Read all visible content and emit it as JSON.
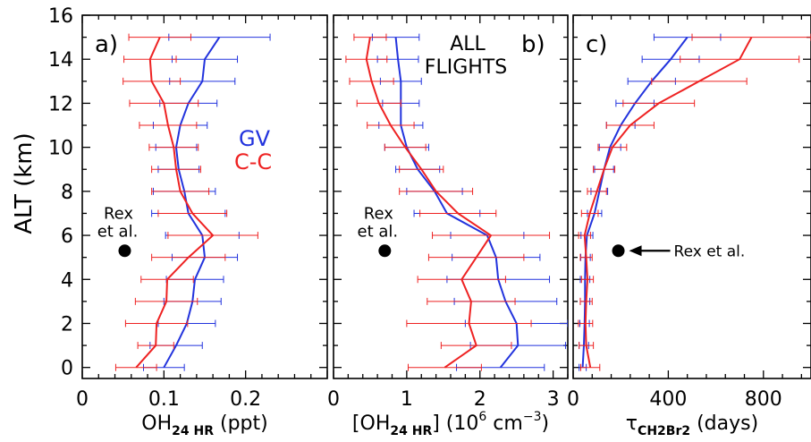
{
  "ylabel": "ALT (km)",
  "yticks": [
    "0",
    "2",
    "4",
    "6",
    "8",
    "10",
    "12",
    "14",
    "16"
  ],
  "colors": {
    "GV": "#2233dd",
    "C-C": "#ee2222",
    "axes": "#000000"
  },
  "chart_data": [
    {
      "type": "line",
      "panel_label": "a)",
      "xlabel": "OH",
      "xlabel_sub": "24 HR",
      "xlabel_unit": " (ppt)",
      "xlim": [
        0,
        0.3
      ],
      "ylim": [
        -0.5,
        16
      ],
      "xticks": [
        0,
        0.1,
        0.2
      ],
      "xtick_labels": [
        "0",
        "0.1",
        "0.2"
      ],
      "legend": {
        "gv": "GV",
        "cc": "C-C"
      },
      "annotation": {
        "line1": "Rex",
        "line2": "et al.",
        "x": 0.052,
        "y": 5.3
      },
      "series": [
        {
          "name": "GV",
          "y": [
            0,
            1,
            2,
            3,
            4,
            5,
            6,
            7,
            8,
            9,
            10,
            11,
            12,
            13,
            14,
            15
          ],
          "x": [
            0.1,
            0.115,
            0.128,
            0.135,
            0.138,
            0.15,
            0.147,
            0.13,
            0.125,
            0.118,
            0.115,
            0.12,
            0.13,
            0.147,
            0.15,
            0.168
          ],
          "err": [
            0.025,
            0.032,
            0.035,
            0.035,
            0.035,
            0.04,
            0.045,
            0.045,
            0.038,
            0.025,
            0.025,
            0.033,
            0.035,
            0.04,
            0.04,
            0.062
          ]
        },
        {
          "name": "C-C",
          "y": [
            0,
            1,
            2,
            3,
            4,
            5,
            6,
            7,
            8,
            9,
            10,
            11,
            12,
            13,
            14,
            15
          ],
          "x": [
            0.066,
            0.09,
            0.091,
            0.103,
            0.104,
            0.13,
            0.16,
            0.135,
            0.12,
            0.115,
            0.112,
            0.105,
            0.1,
            0.085,
            0.083,
            0.095
          ],
          "err": [
            0.025,
            0.022,
            0.038,
            0.038,
            0.032,
            0.045,
            0.055,
            0.042,
            0.035,
            0.03,
            0.03,
            0.035,
            0.042,
            0.035,
            0.032,
            0.038
          ]
        }
      ]
    },
    {
      "type": "line",
      "panel_label": "b)",
      "xlabel": "[OH",
      "xlabel_sub": "24 HR",
      "xlabel_unit": "] (10",
      "xlabel_exp": "6",
      "xlabel_unit2": " cm",
      "xlabel_exp2": "−3",
      "xlabel_close": ")",
      "xlim": [
        0,
        3.2
      ],
      "ylim": [
        -0.5,
        16
      ],
      "xticks": [
        0,
        1,
        2,
        3
      ],
      "xtick_labels": [
        "0",
        "1",
        "2",
        "3"
      ],
      "title_line1": "ALL",
      "title_line2": "FLIGHTS",
      "annotation": {
        "line1": "Rex",
        "line2": "et al.",
        "x": 0.7,
        "y": 5.3
      },
      "series": [
        {
          "name": "GV",
          "y": [
            0,
            1,
            2,
            3,
            4,
            5,
            6,
            7,
            8,
            9,
            10,
            11,
            12,
            13,
            14,
            15
          ],
          "x": [
            2.28,
            2.52,
            2.5,
            2.35,
            2.25,
            2.22,
            2.1,
            1.55,
            1.38,
            1.15,
            1.0,
            0.92,
            0.92,
            0.92,
            0.88,
            0.85
          ],
          "err": [
            0.6,
            0.65,
            0.7,
            0.7,
            0.7,
            0.6,
            0.5,
            0.45,
            0.38,
            0.3,
            0.3,
            0.3,
            0.25,
            0.28,
            0.28,
            0.32
          ]
        },
        {
          "name": "C-C",
          "y": [
            0,
            1,
            2,
            3,
            4,
            5,
            6,
            7,
            8,
            9,
            10,
            11,
            12,
            13,
            14,
            15
          ],
          "x": [
            1.52,
            1.95,
            1.85,
            1.88,
            1.75,
            1.95,
            2.15,
            1.7,
            1.4,
            1.2,
            0.98,
            0.78,
            0.62,
            0.52,
            0.45,
            0.5
          ],
          "err": [
            0.5,
            0.48,
            0.85,
            0.6,
            0.6,
            0.65,
            0.8,
            0.52,
            0.5,
            0.3,
            0.28,
            0.32,
            0.3,
            0.3,
            0.28,
            0.22
          ]
        }
      ]
    },
    {
      "type": "line",
      "panel_label": "c)",
      "xlabel": "τ",
      "xlabel_sub": "CH2Br2",
      "xlabel_unit": " (days)",
      "xlim": [
        0,
        1000
      ],
      "ylim": [
        -0.5,
        16
      ],
      "xticks": [
        0,
        400,
        800
      ],
      "xtick_labels": [
        "0",
        "400",
        "800"
      ],
      "annotation": {
        "label": "Rex et al.",
        "x": 190,
        "y": 5.3
      },
      "series": [
        {
          "name": "GV",
          "y": [
            0,
            1,
            2,
            3,
            4,
            5,
            6,
            7,
            8,
            9,
            10,
            11,
            12,
            13,
            14,
            15
          ],
          "x": [
            40,
            45,
            48,
            50,
            50,
            52,
            58,
            90,
            110,
            130,
            155,
            200,
            260,
            330,
            410,
            480
          ],
          "err": [
            15,
            20,
            20,
            20,
            20,
            20,
            25,
            30,
            35,
            40,
            45,
            60,
            80,
            100,
            120,
            140
          ]
        },
        {
          "name": "C-C",
          "y": [
            0,
            1,
            2,
            3,
            4,
            5,
            6,
            7,
            8,
            9,
            10,
            11,
            12,
            13,
            14,
            15
          ],
          "x": [
            72,
            55,
            52,
            55,
            60,
            55,
            48,
            70,
            100,
            130,
            165,
            240,
            360,
            530,
            700,
            750
          ],
          "err": [
            40,
            30,
            30,
            25,
            25,
            25,
            25,
            35,
            40,
            45,
            60,
            100,
            150,
            200,
            250,
            250
          ]
        }
      ]
    }
  ]
}
